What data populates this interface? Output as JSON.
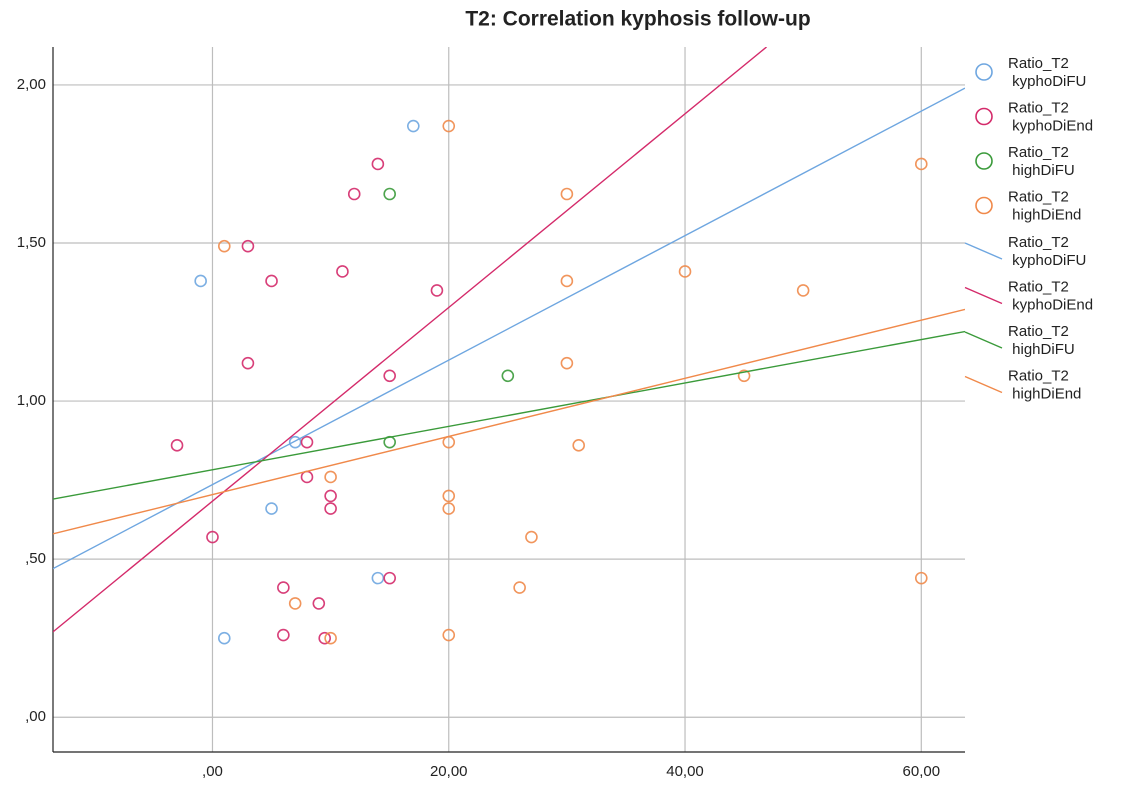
{
  "chart_data": {
    "type": "scatter",
    "title": "T2: Correlation kyphosis follow-up",
    "xlim": [
      -13.5,
      63.7
    ],
    "ylim": [
      -0.11,
      2.12
    ],
    "xticks": [
      {
        "value": 0,
        "label": ",00"
      },
      {
        "value": 20,
        "label": "20,00"
      },
      {
        "value": 40,
        "label": "40,00"
      },
      {
        "value": 60,
        "label": "60,00"
      }
    ],
    "yticks": [
      {
        "value": 0,
        "label": ",00"
      },
      {
        "value": 0.5,
        "label": ",50"
      },
      {
        "value": 1,
        "label": "1,00"
      },
      {
        "value": 1.5,
        "label": "1,50"
      },
      {
        "value": 2,
        "label": "2,00"
      }
    ],
    "grid": true,
    "series": [
      {
        "name": "Ratio_T2 kyphoDiFU",
        "color": "#6ea6e0",
        "x": [
          -1,
          17,
          7,
          5,
          14,
          1
        ],
        "values": [
          1.38,
          1.87,
          0.87,
          0.66,
          0.44,
          0.25
        ]
      },
      {
        "name": "Ratio_T2 kyphoDiEnd",
        "color": "#d42a6a",
        "x": [
          -3,
          0,
          3,
          3,
          5,
          11,
          12,
          14,
          19,
          15,
          15,
          8,
          8,
          10,
          10,
          6,
          9,
          6,
          9.5
        ],
        "values": [
          0.86,
          0.57,
          1.49,
          1.12,
          1.38,
          1.41,
          1.655,
          1.75,
          1.35,
          1.08,
          0.44,
          0.87,
          0.76,
          0.7,
          0.66,
          0.41,
          0.36,
          0.26,
          0.25
        ]
      },
      {
        "name": "Ratio_T2 highDiFU",
        "color": "#3a9a3a",
        "x": [
          15,
          25,
          15
        ],
        "values": [
          1.655,
          1.08,
          0.87
        ]
      },
      {
        "name": "Ratio_T2 highDiEnd",
        "color": "#f0894a",
        "x": [
          1,
          20,
          20,
          30,
          30,
          30,
          31,
          10,
          20,
          20,
          27,
          26,
          7,
          10,
          20,
          40,
          50,
          60,
          60,
          45
        ],
        "values": [
          1.49,
          1.87,
          0.87,
          1.655,
          1.38,
          1.12,
          0.86,
          0.76,
          0.7,
          0.66,
          0.57,
          0.41,
          0.36,
          0.25,
          0.26,
          1.41,
          1.35,
          1.75,
          0.44,
          1.08
        ]
      }
    ],
    "fit_lines": [
      {
        "name": "Ratio_T2 kyphoDiFU",
        "color": "#6ea6e0",
        "x": [
          -13.5,
          63.7
        ],
        "values": [
          0.47,
          1.99
        ]
      },
      {
        "name": "Ratio_T2 kyphoDiEnd",
        "color": "#d42a6a",
        "x": [
          -13.5,
          46.9
        ],
        "values": [
          0.27,
          2.12
        ]
      },
      {
        "name": "Ratio_T2 highDiFU",
        "color": "#3a9a3a",
        "x": [
          -13.5,
          63.7
        ],
        "values": [
          0.69,
          1.22
        ]
      },
      {
        "name": "Ratio_T2 highDiEnd",
        "color": "#f0894a",
        "x": [
          -13.5,
          63.7
        ],
        "values": [
          0.58,
          1.29
        ]
      }
    ]
  }
}
